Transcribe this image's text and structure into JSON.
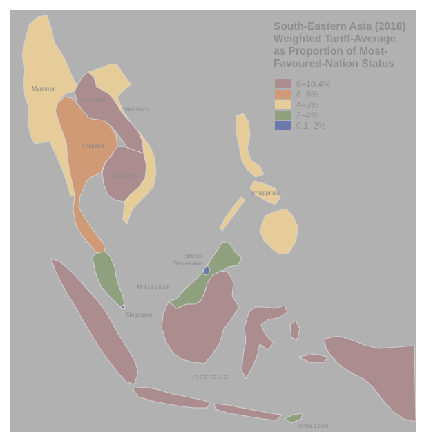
{
  "title_lines": [
    "South-Eastern Asia (2018)",
    "Weighted Tariff-Average",
    "as Proportion of Most-",
    "Favoured-Nation Status"
  ],
  "legend": [
    {
      "label": "8–10.4%",
      "color": "#ab8d8f"
    },
    {
      "label": "6–8%",
      "color": "#cf9a75"
    },
    {
      "label": "4–6%",
      "color": "#e6cc98"
    },
    {
      "label": "2–4%",
      "color": "#8fa07e"
    },
    {
      "label": "0.1–2%",
      "color": "#6a7aaa"
    }
  ],
  "countries": {
    "myanmar": "Myanmar",
    "laos": "Lao PDR",
    "vietnam": "Viet Nam",
    "thailand": "Thailand",
    "cambodia": "Cambodia",
    "philippines": "Philippines",
    "brunei_1": "Brunei",
    "brunei_2": "Darussalam",
    "malaysia": "Malaysia",
    "singapore": "Singapore",
    "indonesia": "Indonesia",
    "timor": "Timor-Leste"
  },
  "colors": {
    "ocean": "#b1b1b1",
    "outline": "#d7d7d7"
  }
}
